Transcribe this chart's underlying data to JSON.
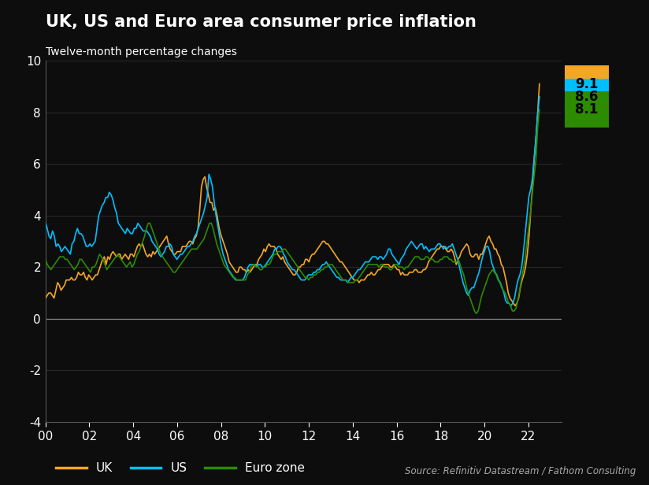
{
  "title": "UK, US and Euro area consumer price inflation",
  "subtitle": "Twelve-month percentage changes",
  "source": "Source: Refinitiv Datastream / Fathom Consulting",
  "background_color": "#0d0d0d",
  "text_color": "#ffffff",
  "ylim": [
    -4,
    10
  ],
  "yticks": [
    -4,
    -2,
    0,
    2,
    4,
    6,
    8,
    10
  ],
  "xtick_labels": [
    "00",
    "02",
    "04",
    "06",
    "08",
    "10",
    "12",
    "14",
    "16",
    "18",
    "20",
    "22"
  ],
  "colors": {
    "UK": "#f5a623",
    "US": "#00bfff",
    "EZ": "#2d8b00"
  },
  "end_labels": [
    {
      "label": "9.1",
      "value": 9.1,
      "color": "#f5a623"
    },
    {
      "label": "8.6",
      "value": 8.6,
      "color": "#00bfff"
    },
    {
      "label": "8.1",
      "value": 8.1,
      "color": "#2d8b00"
    }
  ],
  "UK": [
    0.8,
    0.9,
    1.0,
    1.0,
    0.9,
    0.8,
    1.1,
    1.4,
    1.3,
    1.1,
    1.2,
    1.3,
    1.5,
    1.5,
    1.5,
    1.6,
    1.5,
    1.5,
    1.6,
    1.8,
    1.7,
    1.7,
    1.8,
    1.6,
    1.5,
    1.7,
    1.6,
    1.5,
    1.6,
    1.7,
    1.7,
    1.9,
    2.1,
    2.3,
    2.4,
    2.1,
    2.4,
    2.3,
    2.5,
    2.6,
    2.5,
    2.4,
    2.5,
    2.5,
    2.3,
    2.4,
    2.5,
    2.4,
    2.3,
    2.5,
    2.5,
    2.4,
    2.6,
    2.8,
    2.9,
    2.8,
    2.9,
    2.7,
    2.5,
    2.4,
    2.5,
    2.4,
    2.6,
    2.5,
    2.6,
    2.7,
    2.8,
    2.9,
    3.0,
    3.1,
    3.2,
    2.9,
    2.7,
    2.6,
    2.5,
    2.5,
    2.6,
    2.6,
    2.6,
    2.8,
    2.8,
    2.8,
    2.9,
    3.0,
    3.0,
    2.9,
    3.1,
    3.2,
    3.5,
    4.2,
    5.1,
    5.4,
    5.5,
    5.1,
    4.8,
    4.5,
    4.5,
    4.2,
    4.3,
    4.0,
    3.6,
    3.3,
    3.1,
    2.9,
    2.7,
    2.5,
    2.2,
    2.1,
    2.0,
    1.9,
    1.8,
    1.8,
    2.0,
    2.0,
    1.9,
    1.9,
    1.8,
    1.9,
    1.8,
    1.9,
    2.0,
    2.1,
    2.1,
    2.3,
    2.4,
    2.5,
    2.7,
    2.6,
    2.8,
    2.9,
    2.8,
    2.8,
    2.8,
    2.7,
    2.5,
    2.4,
    2.3,
    2.4,
    2.2,
    2.1,
    2.0,
    1.9,
    1.8,
    1.7,
    1.7,
    1.8,
    2.0,
    2.0,
    2.1,
    2.1,
    2.3,
    2.3,
    2.2,
    2.4,
    2.5,
    2.5,
    2.6,
    2.7,
    2.8,
    2.9,
    3.0,
    3.0,
    2.9,
    2.9,
    2.8,
    2.7,
    2.6,
    2.5,
    2.4,
    2.3,
    2.2,
    2.2,
    2.1,
    2.0,
    1.9,
    1.8,
    1.7,
    1.6,
    1.5,
    1.5,
    1.5,
    1.4,
    1.5,
    1.5,
    1.5,
    1.6,
    1.7,
    1.7,
    1.8,
    1.7,
    1.7,
    1.8,
    1.9,
    1.9,
    2.0,
    2.1,
    2.1,
    2.1,
    2.1,
    2.0,
    2.0,
    2.1,
    2.0,
    1.9,
    1.9,
    1.7,
    1.8,
    1.7,
    1.7,
    1.7,
    1.8,
    1.8,
    1.8,
    1.9,
    1.9,
    1.8,
    1.8,
    1.8,
    1.9,
    1.9,
    2.0,
    2.2,
    2.3,
    2.4,
    2.5,
    2.6,
    2.7,
    2.7,
    2.8,
    2.8,
    2.8,
    2.7,
    2.6,
    2.6,
    2.7,
    2.6,
    2.4,
    2.1,
    2.3,
    2.4,
    2.6,
    2.7,
    2.8,
    2.9,
    2.8,
    2.5,
    2.4,
    2.4,
    2.5,
    2.5,
    2.3,
    2.5,
    2.5,
    2.7,
    2.9,
    3.1,
    3.2,
    3.0,
    2.9,
    2.7,
    2.7,
    2.5,
    2.4,
    2.1,
    2.0,
    1.7,
    1.4,
    1.0,
    0.8,
    0.7,
    0.6,
    0.5,
    0.6,
    0.8,
    1.2,
    1.5,
    1.7,
    2.0,
    2.5,
    3.2,
    4.2,
    5.1,
    6.2,
    7.0,
    8.0,
    9.1
  ],
  "US": [
    3.7,
    3.5,
    3.2,
    3.1,
    3.4,
    3.2,
    2.8,
    2.9,
    2.8,
    2.6,
    2.7,
    2.8,
    2.7,
    2.6,
    2.5,
    2.9,
    3.0,
    3.3,
    3.5,
    3.3,
    3.3,
    3.2,
    3.0,
    2.8,
    2.8,
    2.9,
    2.8,
    2.9,
    3.0,
    3.5,
    4.0,
    4.2,
    4.4,
    4.5,
    4.7,
    4.7,
    4.9,
    4.8,
    4.6,
    4.3,
    4.1,
    3.7,
    3.6,
    3.5,
    3.4,
    3.3,
    3.5,
    3.4,
    3.3,
    3.3,
    3.5,
    3.5,
    3.7,
    3.6,
    3.5,
    3.4,
    3.4,
    3.4,
    3.3,
    3.2,
    3.0,
    2.9,
    2.8,
    2.7,
    2.5,
    2.4,
    2.5,
    2.6,
    2.8,
    2.8,
    2.9,
    2.8,
    2.5,
    2.4,
    2.3,
    2.4,
    2.5,
    2.5,
    2.6,
    2.7,
    2.8,
    2.8,
    2.9,
    3.0,
    3.2,
    3.3,
    3.5,
    3.7,
    3.9,
    4.1,
    4.4,
    4.7,
    5.6,
    5.4,
    5.1,
    4.5,
    4.0,
    3.6,
    3.2,
    2.8,
    2.5,
    2.3,
    2.1,
    1.9,
    1.8,
    1.7,
    1.6,
    1.5,
    1.5,
    1.5,
    1.5,
    1.5,
    1.6,
    1.8,
    2.0,
    2.1,
    2.1,
    2.1,
    2.1,
    2.0,
    2.1,
    2.1,
    2.0,
    2.0,
    2.1,
    2.2,
    2.3,
    2.4,
    2.5,
    2.7,
    2.7,
    2.8,
    2.8,
    2.7,
    2.5,
    2.4,
    2.2,
    2.1,
    2.0,
    1.9,
    1.9,
    1.8,
    1.7,
    1.6,
    1.5,
    1.5,
    1.5,
    1.6,
    1.7,
    1.7,
    1.7,
    1.8,
    1.8,
    1.9,
    1.9,
    2.0,
    2.1,
    2.1,
    2.2,
    2.1,
    2.0,
    1.9,
    1.8,
    1.7,
    1.6,
    1.6,
    1.5,
    1.5,
    1.5,
    1.5,
    1.4,
    1.5,
    1.6,
    1.6,
    1.7,
    1.8,
    1.9,
    1.9,
    2.0,
    2.1,
    2.2,
    2.2,
    2.2,
    2.3,
    2.4,
    2.4,
    2.4,
    2.3,
    2.4,
    2.4,
    2.3,
    2.4,
    2.5,
    2.7,
    2.7,
    2.5,
    2.4,
    2.3,
    2.2,
    2.1,
    2.3,
    2.4,
    2.5,
    2.7,
    2.8,
    2.9,
    3.0,
    2.9,
    2.8,
    2.7,
    2.8,
    2.9,
    2.9,
    2.7,
    2.8,
    2.7,
    2.6,
    2.7,
    2.7,
    2.7,
    2.8,
    2.9,
    2.9,
    2.8,
    2.7,
    2.8,
    2.7,
    2.8,
    2.8,
    2.9,
    2.7,
    2.5,
    2.3,
    2.0,
    1.7,
    1.4,
    1.2,
    1.0,
    0.9,
    1.1,
    1.2,
    1.2,
    1.4,
    1.6,
    1.8,
    2.1,
    2.4,
    2.6,
    2.8,
    2.8,
    2.6,
    2.2,
    2.0,
    1.8,
    1.7,
    1.5,
    1.4,
    1.2,
    1.0,
    0.7,
    0.6,
    0.6,
    0.5,
    0.6,
    0.8,
    1.2,
    1.5,
    1.7,
    2.0,
    2.6,
    3.3,
    4.0,
    4.7,
    5.0,
    5.4,
    6.2,
    7.0,
    7.9,
    8.6
  ],
  "EZ": [
    2.3,
    2.1,
    2.0,
    1.9,
    2.0,
    2.1,
    2.2,
    2.3,
    2.4,
    2.4,
    2.4,
    2.3,
    2.3,
    2.2,
    2.1,
    2.0,
    1.9,
    2.0,
    2.1,
    2.3,
    2.3,
    2.2,
    2.1,
    2.0,
    1.9,
    1.8,
    2.0,
    2.0,
    2.1,
    2.3,
    2.5,
    2.4,
    2.3,
    2.1,
    1.9,
    2.0,
    2.1,
    2.2,
    2.3,
    2.4,
    2.5,
    2.4,
    2.3,
    2.2,
    2.1,
    2.0,
    2.1,
    2.2,
    2.0,
    2.1,
    2.3,
    2.5,
    2.6,
    2.8,
    3.0,
    3.2,
    3.5,
    3.7,
    3.7,
    3.5,
    3.3,
    3.1,
    2.9,
    2.7,
    2.5,
    2.4,
    2.3,
    2.2,
    2.1,
    2.0,
    1.9,
    1.8,
    1.8,
    1.9,
    2.0,
    2.1,
    2.2,
    2.3,
    2.4,
    2.5,
    2.6,
    2.7,
    2.7,
    2.7,
    2.7,
    2.8,
    2.9,
    3.0,
    3.1,
    3.3,
    3.5,
    3.7,
    3.7,
    3.5,
    3.2,
    2.9,
    2.7,
    2.5,
    2.3,
    2.1,
    2.0,
    1.9,
    1.8,
    1.7,
    1.6,
    1.6,
    1.5,
    1.5,
    1.5,
    1.5,
    1.5,
    1.5,
    1.7,
    1.8,
    2.0,
    2.1,
    2.1,
    2.0,
    2.0,
    1.9,
    1.9,
    2.0,
    2.0,
    2.1,
    2.1,
    2.2,
    2.4,
    2.5,
    2.5,
    2.6,
    2.6,
    2.6,
    2.7,
    2.7,
    2.6,
    2.5,
    2.4,
    2.3,
    2.2,
    2.1,
    2.0,
    1.9,
    1.8,
    1.7,
    1.6,
    1.6,
    1.5,
    1.6,
    1.6,
    1.7,
    1.7,
    1.8,
    1.8,
    1.9,
    1.9,
    2.0,
    2.0,
    2.1,
    2.1,
    2.1,
    2.0,
    1.9,
    1.8,
    1.7,
    1.6,
    1.5,
    1.5,
    1.5,
    1.4,
    1.4,
    1.4,
    1.4,
    1.5,
    1.5,
    1.6,
    1.7,
    1.8,
    1.9,
    2.0,
    2.1,
    2.1,
    2.1,
    2.1,
    2.1,
    2.1,
    2.0,
    2.1,
    2.1,
    2.0,
    2.0,
    2.0,
    1.9,
    1.9,
    2.0,
    2.1,
    2.1,
    2.0,
    2.0,
    2.0,
    1.9,
    2.0,
    2.0,
    2.1,
    2.2,
    2.3,
    2.4,
    2.4,
    2.4,
    2.3,
    2.3,
    2.3,
    2.4,
    2.4,
    2.3,
    2.3,
    2.3,
    2.2,
    2.2,
    2.2,
    2.3,
    2.3,
    2.4,
    2.4,
    2.4,
    2.3,
    2.3,
    2.2,
    2.2,
    2.2,
    2.3,
    2.1,
    1.9,
    1.7,
    1.4,
    1.1,
    0.9,
    0.7,
    0.5,
    0.3,
    0.2,
    0.3,
    0.6,
    0.9,
    1.1,
    1.3,
    1.5,
    1.7,
    1.8,
    1.9,
    1.8,
    1.7,
    1.5,
    1.4,
    1.2,
    1.1,
    1.0,
    0.8,
    0.6,
    0.5,
    0.3,
    0.3,
    0.4,
    0.7,
    1.1,
    1.5,
    1.9,
    2.3,
    2.9,
    3.5,
    4.1,
    4.8,
    5.5,
    6.1,
    7.4,
    8.1
  ]
}
